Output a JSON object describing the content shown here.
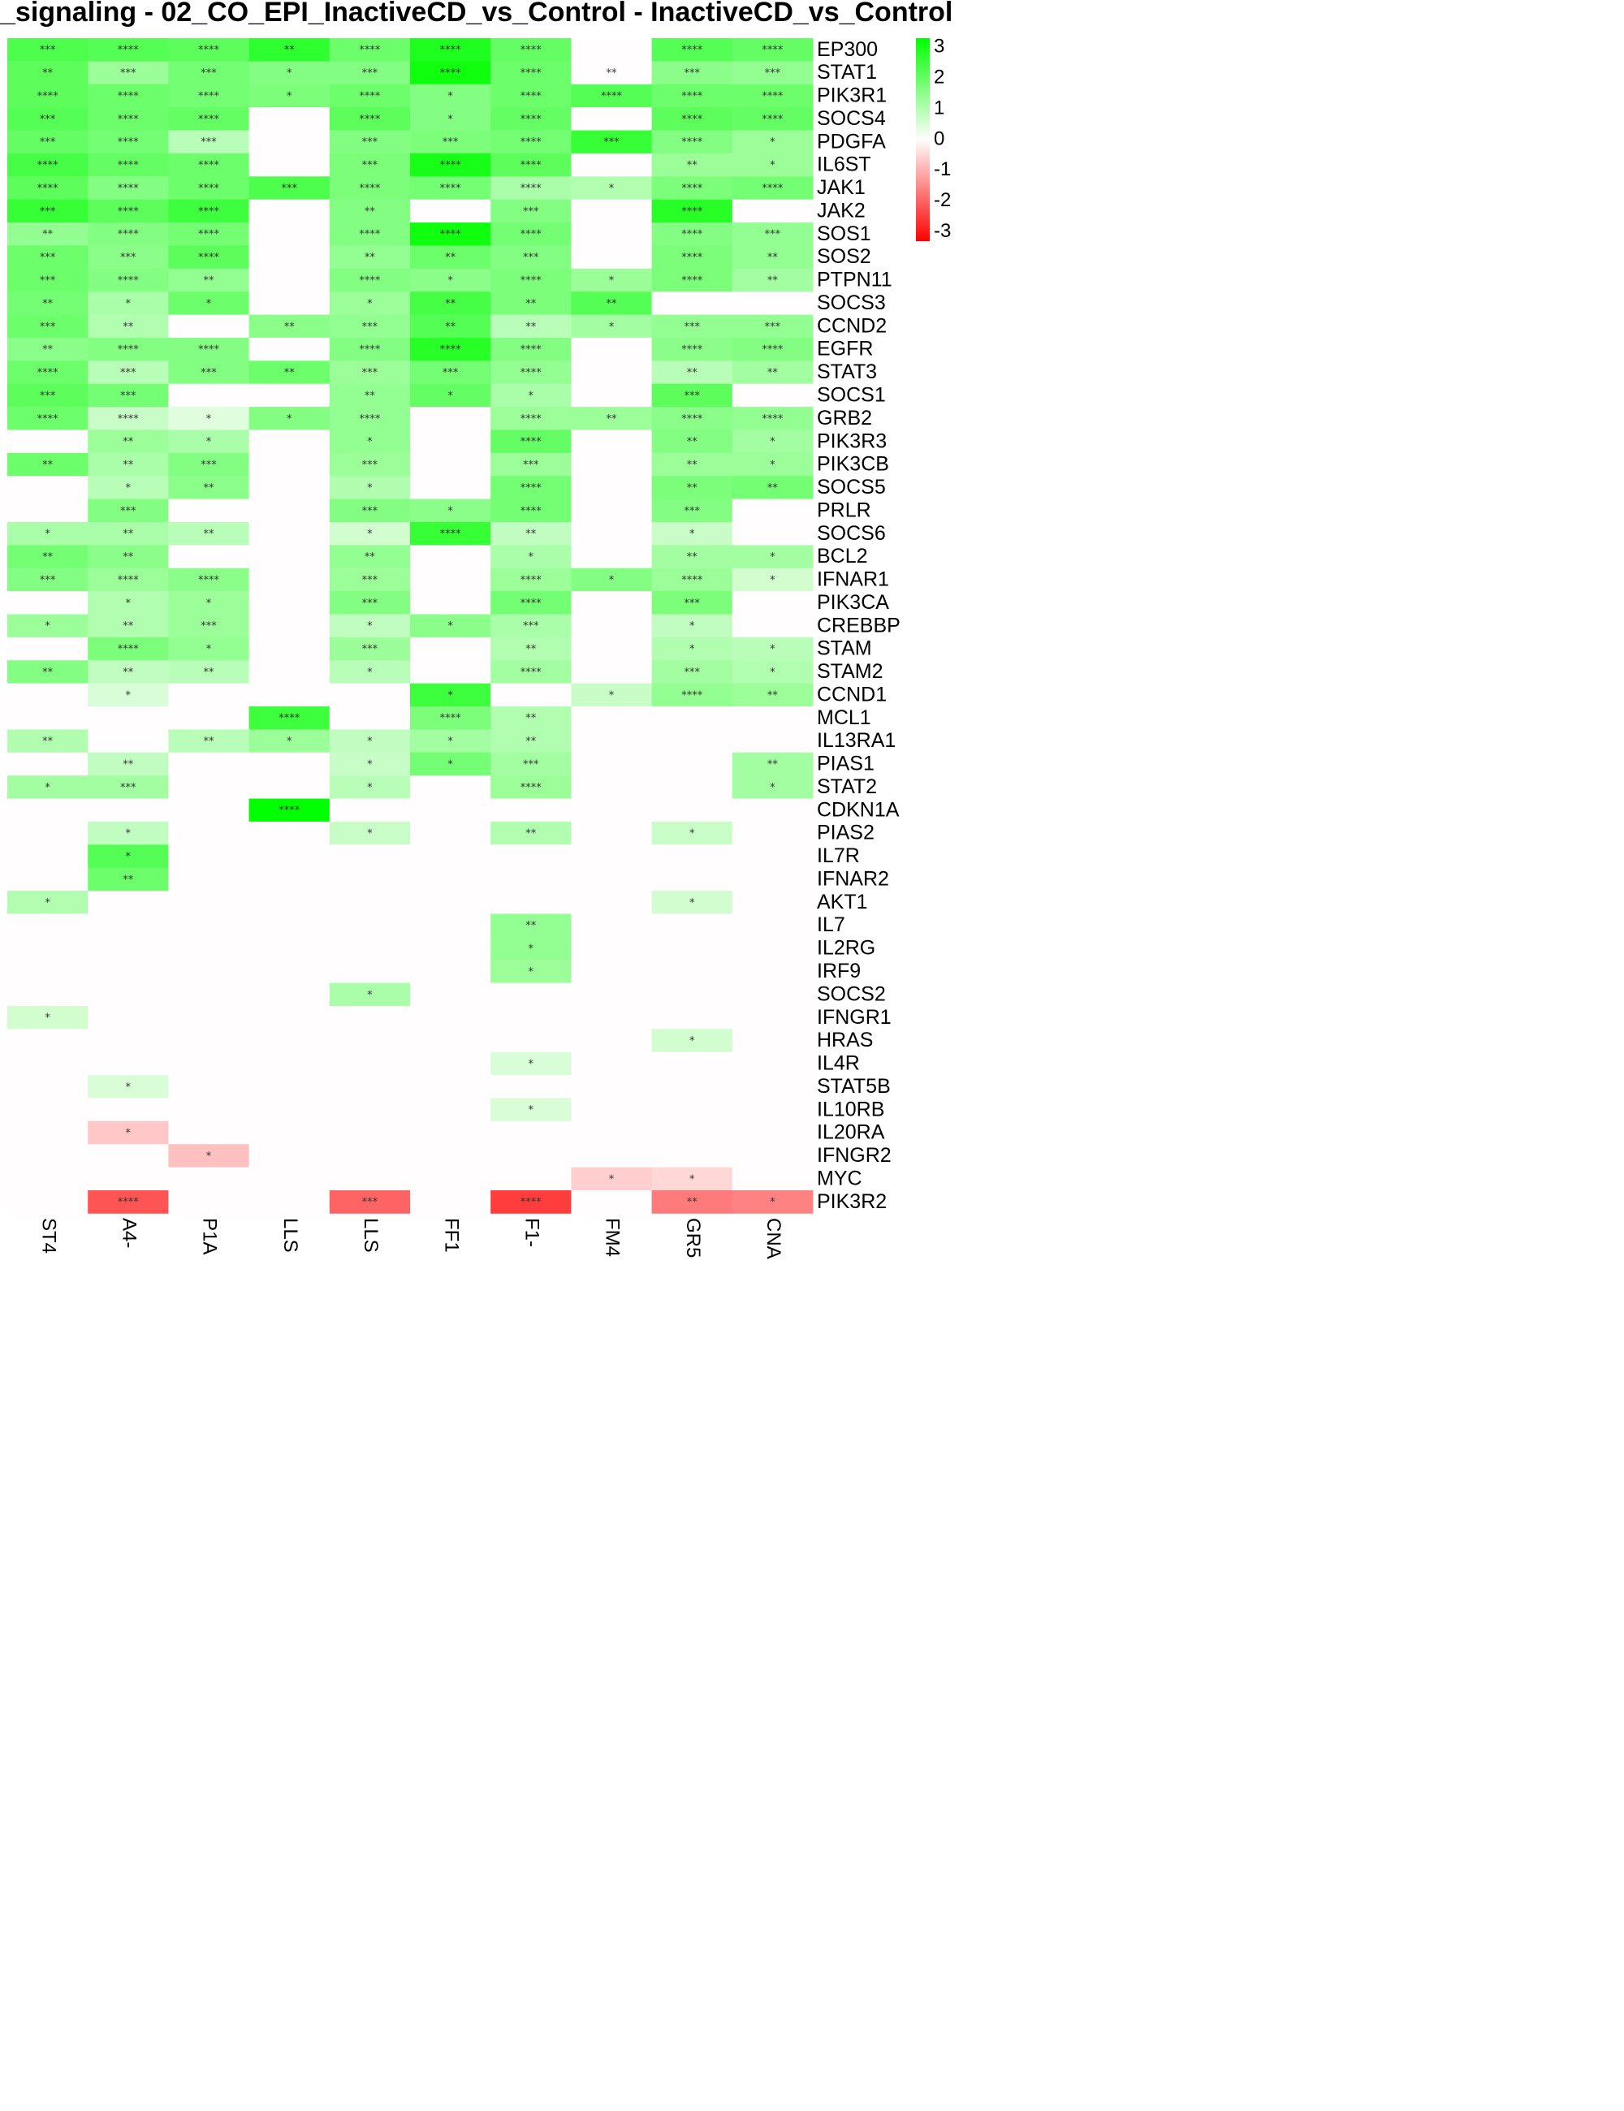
{
  "title": "_signaling - 02_CO_EPI_InactiveCD_vs_Control - InactiveCD_vs_Control",
  "chart_data": {
    "type": "heatmap",
    "title": "_signaling - 02_CO_EPI_InactiveCD_vs_Control - InactiveCD_vs_Control",
    "columns": [
      "ST4",
      "A4-",
      "P1A",
      "LLS",
      "LLS",
      "FF1",
      "F1-",
      "FM4",
      "GR5",
      "CNA"
    ],
    "rows": [
      "EP300",
      "STAT1",
      "PIK3R1",
      "SOCS4",
      "PDGFA",
      "IL6ST",
      "JAK1",
      "JAK2",
      "SOS1",
      "SOS2",
      "PTPN11",
      "SOCS3",
      "CCND2",
      "EGFR",
      "STAT3",
      "SOCS1",
      "GRB2",
      "PIK3R3",
      "PIK3CB",
      "SOCS5",
      "PRLR",
      "SOCS6",
      "BCL2",
      "IFNAR1",
      "PIK3CA",
      "CREBBP",
      "STAM",
      "STAM2",
      "CCND1",
      "MCL1",
      "IL13RA1",
      "PIAS1",
      "STAT2",
      "CDKN1A",
      "PIAS2",
      "IL7R",
      "IFNAR2",
      "AKT1",
      "IL7",
      "IL2RG",
      "IRF9",
      "SOCS2",
      "IFNGR1",
      "HRAS",
      "IL4R",
      "STAT5B",
      "IL10RB",
      "IL20RA",
      "IFNGR2",
      "MYC",
      "PIK3R2"
    ],
    "values": [
      [
        2.3,
        2.2,
        2.1,
        2.7,
        1.9,
        2.9,
        2.0,
        0,
        2.2,
        2.0
      ],
      [
        2.1,
        1.3,
        1.8,
        1.6,
        1.6,
        3.1,
        1.9,
        0,
        1.5,
        1.4
      ],
      [
        2.1,
        1.9,
        1.8,
        1.7,
        1.9,
        1.6,
        1.9,
        2.2,
        1.9,
        1.9
      ],
      [
        2.2,
        1.9,
        2.0,
        0,
        2.1,
        1.6,
        2.0,
        0,
        2.1,
        2.0
      ],
      [
        2.0,
        1.8,
        0.9,
        0,
        1.6,
        1.7,
        1.8,
        2.6,
        1.6,
        1.3
      ],
      [
        2.4,
        2.0,
        1.9,
        0,
        1.7,
        3.0,
        2.1,
        0,
        1.3,
        1.3
      ],
      [
        2.1,
        1.6,
        1.9,
        2.3,
        1.7,
        1.8,
        1.1,
        1.0,
        1.7,
        1.8
      ],
      [
        2.6,
        2.1,
        2.5,
        0,
        1.6,
        0,
        1.6,
        0,
        2.8,
        0
      ],
      [
        1.4,
        1.6,
        1.8,
        0,
        1.6,
        3.1,
        1.8,
        0,
        1.6,
        1.4
      ],
      [
        1.9,
        1.5,
        2.1,
        0,
        1.4,
        1.9,
        1.6,
        0,
        1.7,
        1.4
      ],
      [
        1.9,
        1.6,
        1.4,
        0,
        1.6,
        1.5,
        1.7,
        1.3,
        1.7,
        1.2
      ],
      [
        1.8,
        1.1,
        1.9,
        0,
        1.3,
        2.4,
        1.7,
        2.2,
        0,
        0
      ],
      [
        1.9,
        1.0,
        0,
        1.5,
        1.4,
        2.2,
        0.9,
        1.2,
        1.4,
        1.4
      ],
      [
        1.5,
        1.6,
        1.6,
        0,
        1.6,
        2.8,
        1.6,
        0,
        1.5,
        1.6
      ],
      [
        1.9,
        0.9,
        1.6,
        1.9,
        1.3,
        1.8,
        1.4,
        0,
        0.9,
        1.2
      ],
      [
        2.1,
        1.8,
        0,
        0,
        1.4,
        2.0,
        1.1,
        0,
        2.1,
        0
      ],
      [
        1.9,
        0.7,
        0.4,
        1.6,
        1.4,
        0,
        1.3,
        1.3,
        1.5,
        1.4
      ],
      [
        0,
        1.3,
        1.1,
        0,
        1.4,
        0,
        2.0,
        0,
        1.6,
        1.2
      ],
      [
        1.9,
        1.1,
        1.6,
        0,
        1.3,
        0,
        1.3,
        0,
        1.3,
        1.3
      ],
      [
        0,
        0.9,
        1.5,
        0,
        1.0,
        0,
        1.8,
        0,
        1.7,
        1.8
      ],
      [
        0,
        1.6,
        0,
        0,
        1.6,
        1.5,
        1.8,
        0,
        1.6,
        0
      ],
      [
        1.1,
        1.1,
        0.9,
        0,
        0.6,
        2.6,
        0.8,
        0,
        0.7,
        0
      ],
      [
        1.8,
        1.5,
        0,
        0,
        1.4,
        0,
        1.1,
        0,
        1.2,
        1.2
      ],
      [
        1.6,
        1.3,
        1.5,
        0,
        1.3,
        0,
        1.3,
        1.6,
        1.3,
        0.6
      ],
      [
        0,
        1.0,
        1.3,
        0,
        1.6,
        0,
        1.8,
        0,
        1.7,
        0
      ],
      [
        1.3,
        1.0,
        1.3,
        0,
        0.8,
        1.5,
        1.1,
        0,
        0.8,
        0
      ],
      [
        0,
        1.7,
        1.4,
        0,
        1.3,
        0,
        1.0,
        0,
        1.0,
        0.9
      ],
      [
        1.6,
        0.8,
        0.9,
        0,
        0.9,
        0,
        1.2,
        0,
        1.2,
        1.0
      ],
      [
        0,
        0.5,
        0,
        0,
        0,
        2.5,
        0,
        0.7,
        1.4,
        1.3
      ],
      [
        0,
        0,
        0,
        2.5,
        0,
        1.7,
        1.0,
        0,
        0,
        0
      ],
      [
        1.0,
        0,
        0.9,
        1.3,
        0.8,
        1.2,
        1.0,
        0,
        0,
        0
      ],
      [
        0,
        0.8,
        0,
        0,
        0.7,
        1.8,
        1.2,
        0,
        0,
        1.2
      ],
      [
        1.2,
        1.2,
        0,
        0,
        0.9,
        0,
        1.3,
        0,
        0,
        1.2
      ],
      [
        0,
        0,
        0,
        3.3,
        0,
        0,
        0,
        0,
        0,
        0
      ],
      [
        0,
        0.8,
        0,
        0,
        0.7,
        0,
        1.0,
        0,
        0.7,
        0
      ],
      [
        0,
        2.2,
        0,
        0,
        0,
        0,
        0,
        0,
        0,
        0
      ],
      [
        0,
        1.9,
        0,
        0,
        0,
        0,
        0,
        0,
        0,
        0
      ],
      [
        1.0,
        0,
        0,
        0,
        0,
        0,
        0,
        0,
        0.6,
        0
      ],
      [
        0,
        0,
        0,
        0,
        0,
        0,
        1.4,
        0,
        0,
        0
      ],
      [
        0,
        0,
        0,
        0,
        0,
        0,
        1.4,
        0,
        0,
        0
      ],
      [
        0,
        0,
        0,
        0,
        0,
        0,
        1.3,
        0,
        0,
        0
      ],
      [
        0,
        0,
        0,
        0,
        1.1,
        0,
        0,
        0,
        0,
        0
      ],
      [
        0.6,
        0,
        0,
        0,
        0,
        0,
        0,
        0,
        0,
        0
      ],
      [
        0,
        0,
        0,
        0,
        0,
        0,
        0,
        0,
        0.6,
        0
      ],
      [
        0,
        0,
        0,
        0,
        0,
        0,
        0.5,
        0,
        0,
        0
      ],
      [
        0,
        0.5,
        0,
        0,
        0,
        0,
        0,
        0,
        0,
        0
      ],
      [
        0,
        0,
        0,
        0,
        0,
        0,
        0.5,
        0,
        0,
        0
      ],
      [
        0,
        -0.7,
        0,
        0,
        0,
        0,
        0,
        0,
        0,
        0
      ],
      [
        0,
        0,
        -0.8,
        0,
        0,
        0,
        0,
        0,
        0,
        0
      ],
      [
        0,
        0,
        0,
        0,
        0,
        0,
        0,
        -0.6,
        -0.5,
        0
      ],
      [
        0,
        -2.2,
        0,
        0,
        -2.0,
        0,
        -2.5,
        0,
        -1.7,
        -1.6
      ]
    ],
    "stars": [
      [
        "***",
        "****",
        "****",
        "**",
        "****",
        "****",
        "****",
        "",
        "****",
        "****"
      ],
      [
        "**",
        "***",
        "***",
        "*",
        "***",
        "****",
        "****",
        "**",
        "***",
        "***"
      ],
      [
        "****",
        "****",
        "****",
        "*",
        "****",
        "*",
        "****",
        "****",
        "****",
        "****"
      ],
      [
        "***",
        "****",
        "****",
        "",
        "****",
        "*",
        "****",
        "",
        "****",
        "****"
      ],
      [
        "***",
        "****",
        "***",
        "",
        "***",
        "***",
        "****",
        "***",
        "****",
        "*"
      ],
      [
        "****",
        "****",
        "****",
        "",
        "***",
        "****",
        "****",
        "",
        "**",
        "*"
      ],
      [
        "****",
        "****",
        "****",
        "***",
        "****",
        "****",
        "****",
        "*",
        "****",
        "****"
      ],
      [
        "***",
        "****",
        "****",
        "",
        "**",
        "",
        "***",
        "",
        "****",
        ""
      ],
      [
        "**",
        "****",
        "****",
        "",
        "****",
        "****",
        "****",
        "",
        "****",
        "***"
      ],
      [
        "***",
        "***",
        "****",
        "",
        "**",
        "**",
        "***",
        "",
        "****",
        "**"
      ],
      [
        "***",
        "****",
        "**",
        "",
        "****",
        "*",
        "****",
        "*",
        "****",
        "**"
      ],
      [
        "**",
        "*",
        "*",
        "",
        "*",
        "**",
        "**",
        "**",
        "",
        ""
      ],
      [
        "***",
        "**",
        "",
        "**",
        "***",
        "**",
        "**",
        "*",
        "***",
        "***"
      ],
      [
        "**",
        "****",
        "****",
        "",
        "****",
        "****",
        "****",
        "",
        "****",
        "****"
      ],
      [
        "****",
        "***",
        "***",
        "**",
        "***",
        "***",
        "****",
        "",
        "**",
        "**"
      ],
      [
        "***",
        "***",
        "",
        "",
        "**",
        "*",
        "*",
        "",
        "***",
        ""
      ],
      [
        "****",
        "****",
        "*",
        "*",
        "****",
        "",
        "****",
        "**",
        "****",
        "****"
      ],
      [
        "",
        "**",
        "*",
        "",
        "*",
        "",
        "****",
        "",
        "**",
        "*"
      ],
      [
        "**",
        "**",
        "***",
        "",
        "***",
        "",
        "***",
        "",
        "**",
        "*"
      ],
      [
        "",
        "*",
        "**",
        "",
        "*",
        "",
        "****",
        "",
        "**",
        "**"
      ],
      [
        "",
        "***",
        "",
        "",
        "***",
        "*",
        "****",
        "",
        "***",
        ""
      ],
      [
        "*",
        "**",
        "**",
        "",
        "*",
        "****",
        "**",
        "",
        "*",
        ""
      ],
      [
        "**",
        "**",
        "",
        "",
        "**",
        "",
        "*",
        "",
        "**",
        "*"
      ],
      [
        "***",
        "****",
        "****",
        "",
        "***",
        "",
        "****",
        "*",
        "****",
        "*"
      ],
      [
        "",
        "*",
        "*",
        "",
        "***",
        "",
        "****",
        "",
        "***",
        ""
      ],
      [
        "*",
        "**",
        "***",
        "",
        "*",
        "*",
        "***",
        "",
        "*",
        ""
      ],
      [
        "",
        "****",
        "*",
        "",
        "***",
        "",
        "**",
        "",
        "*",
        "*"
      ],
      [
        "**",
        "**",
        "**",
        "",
        "*",
        "",
        "****",
        "",
        "***",
        "*"
      ],
      [
        "",
        "*",
        "",
        "",
        "",
        "*",
        "",
        "*",
        "****",
        "**"
      ],
      [
        "",
        "",
        "",
        "****",
        "",
        "****",
        "**",
        "",
        "",
        ""
      ],
      [
        "**",
        "",
        "**",
        "*",
        "*",
        "*",
        "**",
        "",
        "",
        ""
      ],
      [
        "",
        "**",
        "",
        "",
        "*",
        "*",
        "***",
        "",
        "",
        "**"
      ],
      [
        "*",
        "***",
        "",
        "",
        "*",
        "",
        "****",
        "",
        "",
        "*"
      ],
      [
        "",
        "",
        "",
        "****",
        "",
        "",
        "",
        "",
        "",
        ""
      ],
      [
        "",
        "*",
        "",
        "",
        "*",
        "",
        "**",
        "",
        "*",
        ""
      ],
      [
        "",
        "*",
        "",
        "",
        "",
        "",
        "",
        "",
        "",
        ""
      ],
      [
        "",
        "**",
        "",
        "",
        "",
        "",
        "",
        "",
        "",
        ""
      ],
      [
        "*",
        "",
        "",
        "",
        "",
        "",
        "",
        "",
        "*",
        ""
      ],
      [
        "",
        "",
        "",
        "",
        "",
        "",
        "**",
        "",
        "",
        ""
      ],
      [
        "",
        "",
        "",
        "",
        "",
        "",
        "*",
        "",
        "",
        ""
      ],
      [
        "",
        "",
        "",
        "",
        "",
        "",
        "*",
        "",
        "",
        ""
      ],
      [
        "",
        "",
        "",
        "",
        "*",
        "",
        "",
        "",
        "",
        ""
      ],
      [
        "*",
        "",
        "",
        "",
        "",
        "",
        "",
        "",
        "",
        ""
      ],
      [
        "",
        "",
        "",
        "",
        "",
        "",
        "",
        "",
        "*",
        ""
      ],
      [
        "",
        "",
        "",
        "",
        "",
        "",
        "*",
        "",
        "",
        ""
      ],
      [
        "",
        "*",
        "",
        "",
        "",
        "",
        "",
        "",
        "",
        ""
      ],
      [
        "",
        "",
        "",
        "",
        "",
        "",
        "*",
        "",
        "",
        ""
      ],
      [
        "",
        "*",
        "",
        "",
        "",
        "",
        "",
        "",
        "",
        ""
      ],
      [
        "",
        "",
        "*",
        "",
        "",
        "",
        "",
        "",
        "",
        ""
      ],
      [
        "",
        "",
        "",
        "",
        "",
        "",
        "",
        "*",
        "*",
        ""
      ],
      [
        "",
        "****",
        "",
        "",
        "***",
        "",
        "****",
        "",
        "**",
        "*"
      ]
    ],
    "legend": {
      "ticks": [
        3,
        2,
        1,
        0,
        -1,
        -2,
        -3
      ],
      "tick_labels": [
        "3",
        "2",
        "1",
        "0",
        "-1",
        "-2",
        "-3"
      ],
      "range": [
        -3.3,
        3.3
      ],
      "placement": "top-right"
    },
    "colors": {
      "high": "#00ff00",
      "mid": "#fffdfd",
      "low": "#ff0000"
    }
  }
}
